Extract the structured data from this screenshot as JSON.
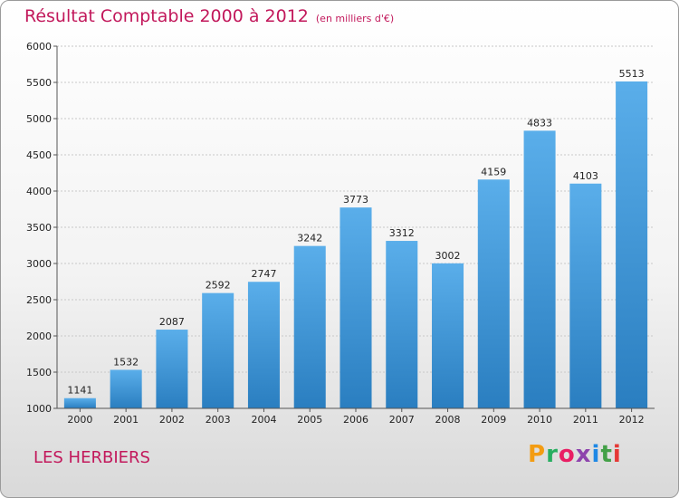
{
  "header": {
    "title": "Résultat Comptable 2000 à 2012",
    "unit": "(en milliers d'€)"
  },
  "footer": {
    "commune": "LES HERBIERS",
    "brand": "Proxiti"
  },
  "colors": {
    "title": "#c2185b",
    "bar_top": "#5aaeea",
    "bar_bottom": "#2a7ec0"
  },
  "chart_data": {
    "type": "bar",
    "title": "Résultat Comptable 2000 à 2012",
    "subtitle": "(en milliers d'€)",
    "xlabel": "",
    "ylabel": "",
    "categories": [
      "2000",
      "2001",
      "2002",
      "2003",
      "2004",
      "2005",
      "2006",
      "2007",
      "2008",
      "2009",
      "2010",
      "2011",
      "2012"
    ],
    "values": [
      1141,
      1532,
      2087,
      2592,
      2747,
      3242,
      3773,
      3312,
      3002,
      4159,
      4833,
      4103,
      5513
    ],
    "ylim": [
      1000,
      6000
    ],
    "yticks": [
      1000,
      1500,
      2000,
      2500,
      3000,
      3500,
      4000,
      4500,
      5000,
      5500,
      6000
    ],
    "grid": true
  }
}
